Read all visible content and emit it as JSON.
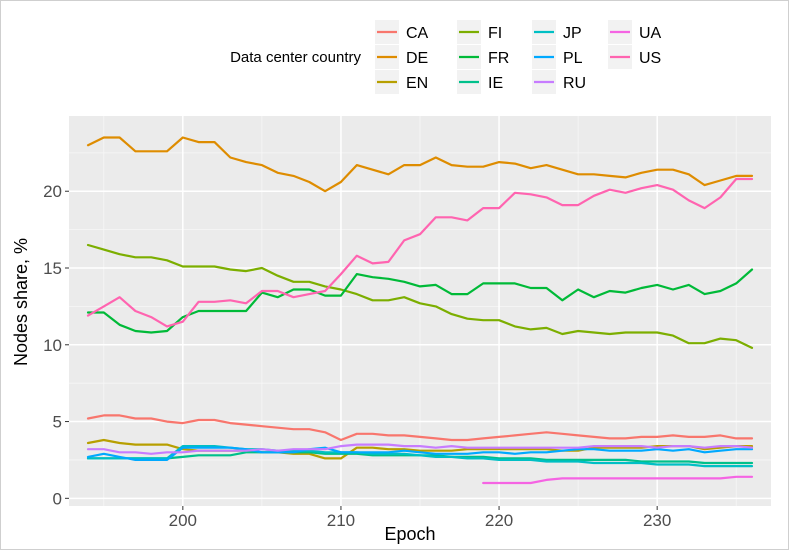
{
  "chart_data": {
    "type": "line",
    "title": "",
    "xlabel": "Epoch",
    "ylabel": "Nodes share, %",
    "xlim": [
      192.8,
      237.2
    ],
    "ylim": [
      -0.5,
      24.9
    ],
    "xticks": [
      200,
      210,
      220,
      230
    ],
    "yticks": [
      0,
      5,
      10,
      15,
      20
    ],
    "grid": true,
    "legend": {
      "title": "Data center country",
      "position": "top"
    },
    "series": [
      {
        "name": "CA",
        "color": "#F8766D",
        "x": [
          194,
          195,
          196,
          197,
          198,
          199,
          200,
          201,
          202,
          203,
          204,
          205,
          206,
          207,
          208,
          209,
          210,
          211,
          212,
          213,
          214,
          215,
          216,
          217,
          218,
          219,
          220,
          221,
          222,
          223,
          224,
          225,
          226,
          227,
          228,
          229,
          230,
          231,
          232,
          233,
          234,
          235,
          236
        ],
        "values": [
          5.2,
          5.4,
          5.4,
          5.2,
          5.2,
          5.0,
          4.9,
          5.1,
          5.1,
          4.9,
          4.8,
          4.7,
          4.6,
          4.5,
          4.5,
          4.3,
          3.8,
          4.2,
          4.2,
          4.1,
          4.1,
          4.0,
          3.9,
          3.8,
          3.8,
          3.9,
          4.0,
          4.1,
          4.2,
          4.3,
          4.2,
          4.1,
          4.0,
          3.9,
          3.9,
          4.0,
          4.0,
          4.1,
          4.0,
          4.0,
          4.1,
          3.9,
          3.9
        ]
      },
      {
        "name": "DE",
        "color": "#DE8C00",
        "x": [
          194,
          195,
          196,
          197,
          198,
          199,
          200,
          201,
          202,
          203,
          204,
          205,
          206,
          207,
          208,
          209,
          210,
          211,
          212,
          213,
          214,
          215,
          216,
          217,
          218,
          219,
          220,
          221,
          222,
          223,
          224,
          225,
          226,
          227,
          228,
          229,
          230,
          231,
          232,
          233,
          234,
          235,
          236
        ],
        "values": [
          23.0,
          23.5,
          23.5,
          22.6,
          22.6,
          22.6,
          23.5,
          23.2,
          23.2,
          22.2,
          21.9,
          21.7,
          21.2,
          21.0,
          20.6,
          20.0,
          20.6,
          21.7,
          21.4,
          21.1,
          21.7,
          21.7,
          22.2,
          21.7,
          21.6,
          21.6,
          21.9,
          21.8,
          21.5,
          21.7,
          21.4,
          21.1,
          21.1,
          21.0,
          20.9,
          21.2,
          21.4,
          21.4,
          21.1,
          20.4,
          20.7,
          21.0,
          21.0
        ]
      },
      {
        "name": "EN",
        "color": "#B79F00",
        "x": [
          194,
          195,
          196,
          197,
          198,
          199,
          200,
          201,
          202,
          203,
          204,
          205,
          206,
          207,
          208,
          209,
          210,
          211,
          212,
          213,
          214,
          215,
          216,
          217,
          218,
          219,
          220,
          221,
          222,
          223,
          224,
          225,
          226,
          227,
          228,
          229,
          230,
          231,
          232,
          233,
          234,
          235,
          236
        ],
        "values": [
          3.6,
          3.8,
          3.6,
          3.5,
          3.5,
          3.5,
          3.2,
          3.1,
          3.1,
          3.1,
          3.1,
          3.0,
          3.0,
          2.9,
          2.9,
          2.6,
          2.6,
          3.3,
          3.3,
          3.2,
          3.2,
          3.1,
          3.1,
          3.1,
          3.2,
          3.2,
          3.2,
          3.2,
          3.2,
          3.2,
          3.1,
          3.1,
          3.3,
          3.3,
          3.3,
          3.3,
          3.4,
          3.4,
          3.4,
          3.2,
          3.3,
          3.4,
          3.4
        ]
      },
      {
        "name": "FI",
        "color": "#7CAE00",
        "x": [
          194,
          195,
          196,
          197,
          198,
          199,
          200,
          201,
          202,
          203,
          204,
          205,
          206,
          207,
          208,
          209,
          210,
          211,
          212,
          213,
          214,
          215,
          216,
          217,
          218,
          219,
          220,
          221,
          222,
          223,
          224,
          225,
          226,
          227,
          228,
          229,
          230,
          231,
          232,
          233,
          234,
          235,
          236
        ],
        "values": [
          16.5,
          16.2,
          15.9,
          15.7,
          15.7,
          15.5,
          15.1,
          15.1,
          15.1,
          14.9,
          14.8,
          15.0,
          14.5,
          14.1,
          14.1,
          13.8,
          13.6,
          13.3,
          12.9,
          12.9,
          13.1,
          12.7,
          12.5,
          12.0,
          11.7,
          11.6,
          11.6,
          11.2,
          11.0,
          11.1,
          10.7,
          10.9,
          10.8,
          10.7,
          10.8,
          10.8,
          10.8,
          10.6,
          10.1,
          10.1,
          10.4,
          10.3,
          9.8
        ]
      },
      {
        "name": "FR",
        "color": "#00BA38",
        "x": [
          194,
          195,
          196,
          197,
          198,
          199,
          200,
          201,
          202,
          203,
          204,
          205,
          206,
          207,
          208,
          209,
          210,
          211,
          212,
          213,
          214,
          215,
          216,
          217,
          218,
          219,
          220,
          221,
          222,
          223,
          224,
          225,
          226,
          227,
          228,
          229,
          230,
          231,
          232,
          233,
          234,
          235,
          236
        ],
        "values": [
          12.1,
          12.1,
          11.3,
          10.9,
          10.8,
          10.9,
          11.8,
          12.2,
          12.2,
          12.2,
          12.2,
          13.4,
          13.1,
          13.6,
          13.6,
          13.2,
          13.2,
          14.6,
          14.4,
          14.3,
          14.1,
          13.8,
          13.9,
          13.3,
          13.3,
          14.0,
          14.0,
          14.0,
          13.7,
          13.7,
          12.9,
          13.6,
          13.1,
          13.5,
          13.4,
          13.7,
          13.9,
          13.6,
          13.9,
          13.3,
          13.5,
          14.0,
          14.9
        ]
      },
      {
        "name": "IE",
        "color": "#00C08B",
        "x": [
          194,
          195,
          196,
          197,
          198,
          199,
          200,
          201,
          202,
          203,
          204,
          205,
          206,
          207,
          208,
          209,
          210,
          211,
          212,
          213,
          214,
          215,
          216,
          217,
          218,
          219,
          220,
          221,
          222,
          223,
          224,
          225,
          226,
          227,
          228,
          229,
          230,
          231,
          232,
          233,
          234,
          235,
          236
        ],
        "values": [
          2.6,
          2.6,
          2.6,
          2.6,
          2.6,
          2.6,
          2.7,
          2.8,
          2.8,
          2.8,
          3.0,
          3.0,
          3.0,
          3.0,
          3.0,
          2.9,
          2.9,
          2.9,
          2.8,
          2.8,
          2.8,
          2.8,
          2.8,
          2.7,
          2.7,
          2.7,
          2.6,
          2.6,
          2.6,
          2.5,
          2.5,
          2.5,
          2.5,
          2.5,
          2.5,
          2.4,
          2.4,
          2.4,
          2.4,
          2.3,
          2.3,
          2.3,
          2.3
        ]
      },
      {
        "name": "JP",
        "color": "#00BFC4",
        "x": [
          194,
          195,
          196,
          197,
          198,
          199,
          200,
          201,
          202,
          203,
          204,
          205,
          206,
          207,
          208,
          209,
          210,
          211,
          212,
          213,
          214,
          215,
          216,
          217,
          218,
          219,
          220,
          221,
          222,
          223,
          224,
          225,
          226,
          227,
          228,
          229,
          230,
          231,
          232,
          233,
          234,
          235,
          236
        ],
        "values": [
          2.6,
          2.6,
          2.6,
          2.6,
          2.6,
          2.6,
          3.4,
          3.4,
          3.4,
          3.3,
          3.2,
          3.2,
          3.1,
          3.1,
          3.1,
          3.0,
          3.0,
          3.0,
          2.9,
          2.9,
          2.9,
          2.8,
          2.7,
          2.7,
          2.6,
          2.6,
          2.5,
          2.5,
          2.5,
          2.4,
          2.4,
          2.4,
          2.3,
          2.3,
          2.3,
          2.3,
          2.2,
          2.2,
          2.2,
          2.1,
          2.1,
          2.1,
          2.1
        ]
      },
      {
        "name": "PL",
        "color": "#00A9FF",
        "x": [
          194,
          195,
          196,
          197,
          198,
          199,
          200,
          201,
          202,
          203,
          204,
          205,
          206,
          207,
          208,
          209,
          210,
          211,
          212,
          213,
          214,
          215,
          216,
          217,
          218,
          219,
          220,
          221,
          222,
          223,
          224,
          225,
          226,
          227,
          228,
          229,
          230,
          231,
          232,
          233,
          234,
          235,
          236
        ],
        "values": [
          2.7,
          2.9,
          2.7,
          2.5,
          2.5,
          2.5,
          3.3,
          3.3,
          3.3,
          3.3,
          3.2,
          3.0,
          3.0,
          3.0,
          3.2,
          3.3,
          3.0,
          3.0,
          3.0,
          3.0,
          3.1,
          3.0,
          2.9,
          2.9,
          2.9,
          3.0,
          3.0,
          2.9,
          3.0,
          3.0,
          3.1,
          3.2,
          3.2,
          3.1,
          3.1,
          3.1,
          3.2,
          3.1,
          3.2,
          3.0,
          3.1,
          3.2,
          3.2
        ]
      },
      {
        "name": "RU",
        "color": "#C77CFF",
        "x": [
          194,
          195,
          196,
          197,
          198,
          199,
          200,
          201,
          202,
          203,
          204,
          205,
          206,
          207,
          208,
          209,
          210,
          211,
          212,
          213,
          214,
          215,
          216,
          217,
          218,
          219,
          220,
          221,
          222,
          223,
          224,
          225,
          226,
          227,
          228,
          229,
          230,
          231,
          232,
          233,
          234,
          235,
          236
        ],
        "values": [
          3.2,
          3.2,
          3.0,
          3.0,
          2.9,
          3.0,
          3.0,
          3.1,
          3.1,
          3.1,
          3.1,
          3.2,
          3.1,
          3.2,
          3.2,
          3.2,
          3.4,
          3.5,
          3.5,
          3.5,
          3.4,
          3.4,
          3.3,
          3.4,
          3.3,
          3.3,
          3.3,
          3.3,
          3.3,
          3.3,
          3.3,
          3.3,
          3.4,
          3.4,
          3.4,
          3.4,
          3.3,
          3.4,
          3.4,
          3.3,
          3.4,
          3.4,
          3.3
        ]
      },
      {
        "name": "UA",
        "color": "#F564E3",
        "x": [
          219,
          220,
          221,
          222,
          223,
          224,
          225,
          226,
          227,
          228,
          229,
          230,
          231,
          232,
          233,
          234,
          235,
          236
        ],
        "values": [
          1.0,
          1.0,
          1.0,
          1.0,
          1.2,
          1.3,
          1.3,
          1.3,
          1.3,
          1.3,
          1.3,
          1.3,
          1.3,
          1.3,
          1.3,
          1.3,
          1.4,
          1.4
        ]
      },
      {
        "name": "US",
        "color": "#FF64B0",
        "x": [
          194,
          195,
          196,
          197,
          198,
          199,
          200,
          201,
          202,
          203,
          204,
          205,
          206,
          207,
          208,
          209,
          210,
          211,
          212,
          213,
          214,
          215,
          216,
          217,
          218,
          219,
          220,
          221,
          222,
          223,
          224,
          225,
          226,
          227,
          228,
          229,
          230,
          231,
          232,
          233,
          234,
          235,
          236
        ],
        "values": [
          11.9,
          12.5,
          13.1,
          12.2,
          11.8,
          11.2,
          11.5,
          12.8,
          12.8,
          12.9,
          12.7,
          13.5,
          13.5,
          13.1,
          13.3,
          13.5,
          14.6,
          15.8,
          15.3,
          15.4,
          16.8,
          17.2,
          18.3,
          18.3,
          18.1,
          18.9,
          18.9,
          19.9,
          19.8,
          19.6,
          19.1,
          19.1,
          19.7,
          20.1,
          19.9,
          20.2,
          20.4,
          20.1,
          19.4,
          18.9,
          19.6,
          20.8,
          20.8
        ]
      }
    ]
  }
}
